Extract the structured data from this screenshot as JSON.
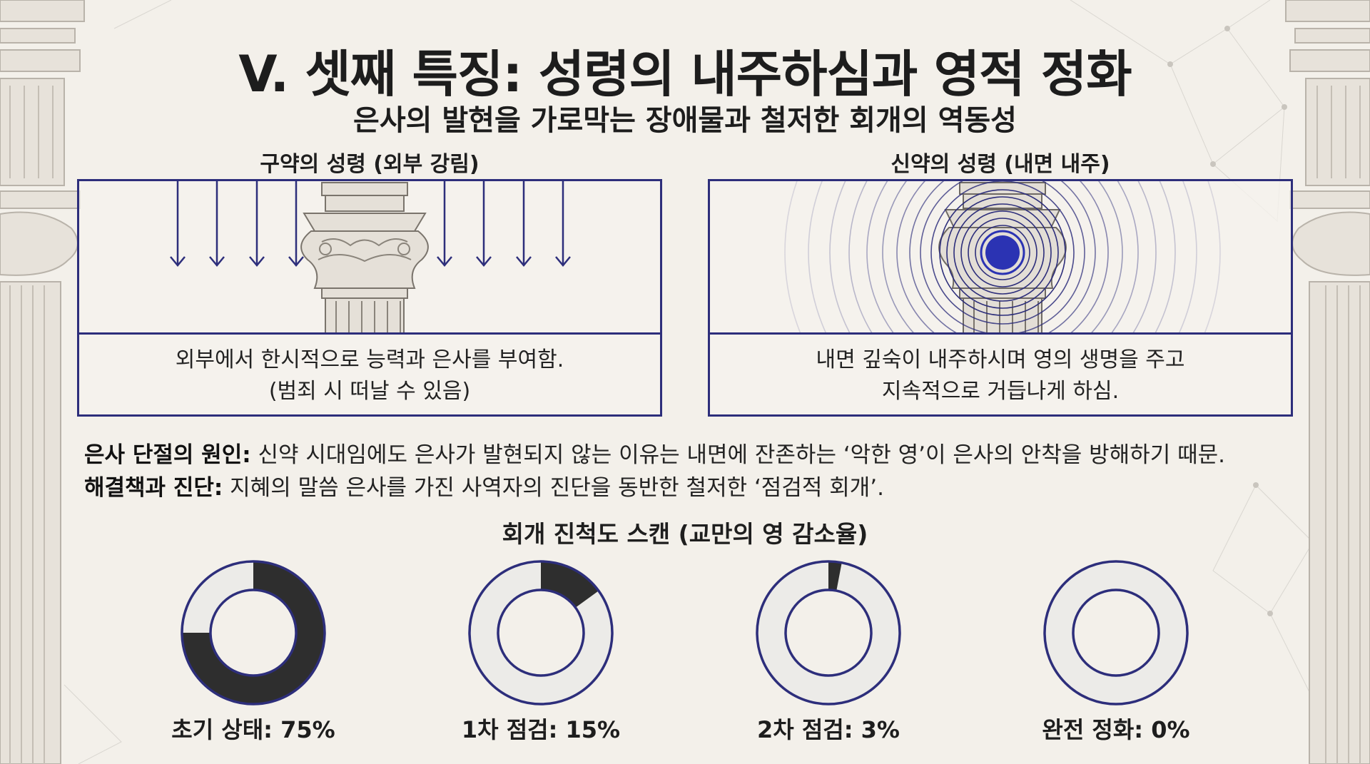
{
  "title": "V. 셋째 특징: 성령의 내주하심과 영적 정화",
  "subtitle": "은사의 발현을 가로막는 장애물과 철저한 회개의 역동성",
  "panels": [
    {
      "label": "구약의 성령 (외부 강림)",
      "desc_line1": "외부에서 한시적으로 능력과 은사를 부여함.",
      "desc_line2": "(범죄 시 떠날 수 있음)",
      "illustration": "arrows-descending-onto-column-icon"
    },
    {
      "label": "신약의 성령 (내면 내주)",
      "desc_line1": "내면 깊숙이 내주하시며 영의 생명을 주고",
      "desc_line2": "지속적으로 거듭나게 하심.",
      "illustration": "concentric-rings-radiating-icon"
    }
  ],
  "cause": {
    "label": "은사 단절의 원인:",
    "text": " 신약 시대임에도 은사가 발현되지 않는 이유는 내면에 잔존하는 ‘악한 영’이 은사의 안착을 방해하기 때문."
  },
  "solution": {
    "label": "해결책과 진단:",
    "text": " 지혜의 말씀 은사를 가진 사역자의 진단을 동반한 철저한 ‘점검적 회개’."
  },
  "scan": {
    "title": "회개 진척도 스캔 (교만의 영 감소율)",
    "items": [
      {
        "label": "초기 상태: 75%",
        "value": 75
      },
      {
        "label": "1차 점검: 15%",
        "value": 15
      },
      {
        "label": "2차 점검: 3%",
        "value": 3
      },
      {
        "label": "완전 정화: 0%",
        "value": 0
      }
    ]
  },
  "colors": {
    "accent_navy": "#2d2e7b",
    "donut_fill": "#2e2e2e",
    "donut_empty": "#ecebe8",
    "core_blue": "#2b33b3"
  }
}
